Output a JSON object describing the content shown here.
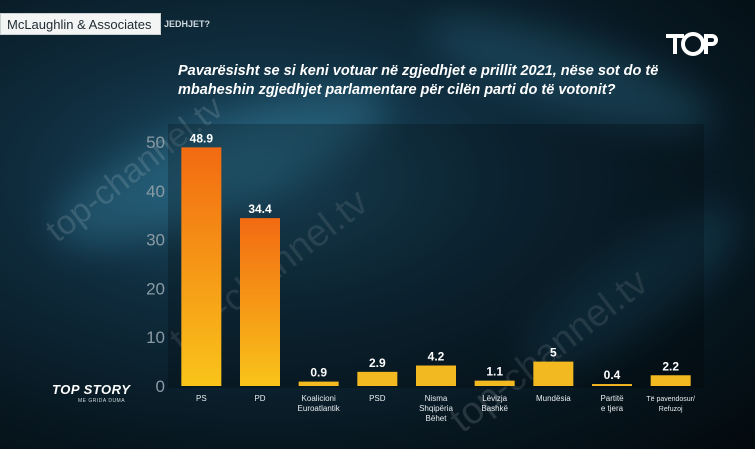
{
  "header": {
    "source_label": "McLaughlin & Associates",
    "source_tail": "JEDHJET?"
  },
  "logo": {
    "name": "top-channel-logo-icon"
  },
  "watermark": {
    "text": "top-channel.tv"
  },
  "brand": {
    "title": "TOP STORY",
    "subtitle": "ME GRIDA DUMA"
  },
  "colors": {
    "bar_top": "#f26a12",
    "bar_bottom": "#f9c41a",
    "small_bar": "#f2b920",
    "axis_text": "#8a9ba4"
  },
  "chart_data": {
    "type": "bar",
    "title": "Pavarësisht se si keni votuar në zgjedhjet e prillit 2021, nëse sot do të mbaheshin zgjedhjet parlamentare për cilën parti do të votonit?",
    "categories": [
      "PS",
      "PD",
      "Koalicioni Euroatlantik",
      "PSD",
      "Nisma Shqipëria Bëhet",
      "Lëvizja Bashkë",
      "Mundësia",
      "Partitë e tjera",
      "Të pavendosur/ Refuzoj"
    ],
    "category_lines": [
      [
        "PS"
      ],
      [
        "PD"
      ],
      [
        "Koalicioni",
        "Euroatlantik"
      ],
      [
        "PSD"
      ],
      [
        "Nisma",
        "Shqipëria",
        "Bëhet"
      ],
      [
        "Lëvizja",
        "Bashkë"
      ],
      [
        "Mundësia"
      ],
      [
        "Partitë",
        "e tjera"
      ],
      [
        "Të pavendosur/",
        "Refuzoj"
      ]
    ],
    "values": [
      48.9,
      34.4,
      0.9,
      2.9,
      4.2,
      1.1,
      5,
      0.4,
      2.2
    ],
    "value_labels": [
      "48.9",
      "34.4",
      "0.9",
      "2.9",
      "4.2",
      "1.1",
      "5",
      "0.4",
      "2.2"
    ],
    "yticks": [
      0,
      10,
      20,
      30,
      40,
      50
    ],
    "ylim": [
      0,
      50
    ],
    "grid": false,
    "xlabel": "",
    "ylabel": ""
  }
}
